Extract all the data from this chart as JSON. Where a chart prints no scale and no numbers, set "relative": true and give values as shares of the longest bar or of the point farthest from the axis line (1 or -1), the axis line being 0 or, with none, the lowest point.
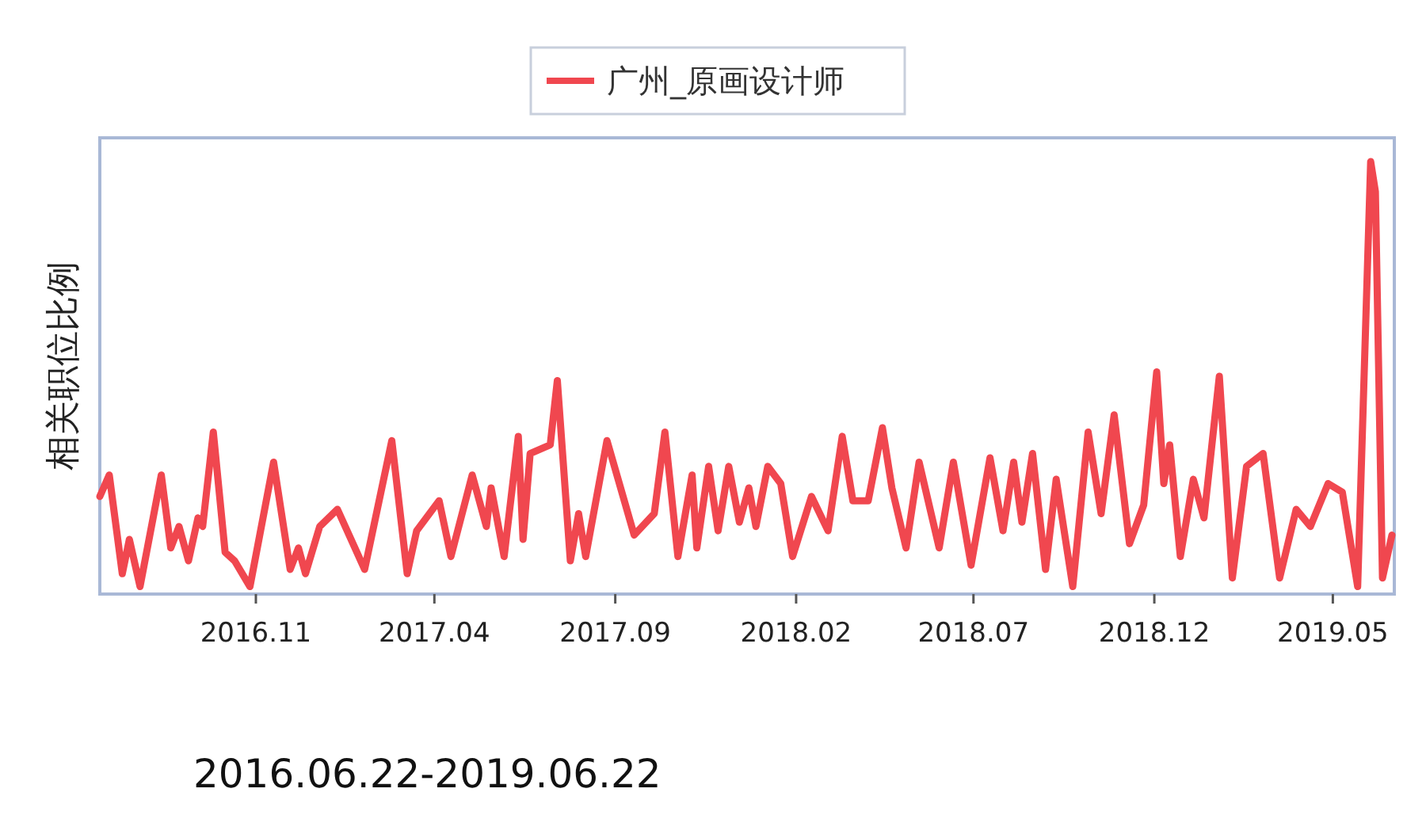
{
  "chart_data": {
    "type": "line",
    "ylabel": "相关职位比例",
    "legend": "top",
    "grid": false,
    "relative": true,
    "xlim": [
      "2016-06-22",
      "2019-06-22"
    ],
    "xticks": [
      {
        "value": "2016-11-01",
        "label": "2016.11"
      },
      {
        "value": "2017-04-01",
        "label": "2017.04"
      },
      {
        "value": "2017-09-01",
        "label": "2017.09"
      },
      {
        "value": "2018-02-01",
        "label": "2018.02"
      },
      {
        "value": "2018-07-01",
        "label": "2018.07"
      },
      {
        "value": "2018-12-01",
        "label": "2018.12"
      },
      {
        "value": "2019-05-01",
        "label": "2019.05"
      }
    ],
    "annotations": [
      "2016.06.22-2019.06.22"
    ],
    "x": [
      "2016-06-22",
      "2016-06-30",
      "2016-07-11",
      "2016-07-17",
      "2016-07-26",
      "2016-08-13",
      "2016-08-21",
      "2016-08-28",
      "2016-09-05",
      "2016-09-13",
      "2016-09-17",
      "2016-09-26",
      "2016-10-06",
      "2016-10-14",
      "2016-10-27",
      "2016-11-16",
      "2016-11-30",
      "2016-12-07",
      "2016-12-13",
      "2016-12-25",
      "2017-01-09",
      "2017-02-01",
      "2017-02-24",
      "2017-03-09",
      "2017-03-17",
      "2017-04-05",
      "2017-04-15",
      "2017-05-03",
      "2017-05-15",
      "2017-05-19",
      "2017-05-30",
      "2017-06-11",
      "2017-06-15",
      "2017-06-21",
      "2017-07-08",
      "2017-07-14",
      "2017-07-25",
      "2017-08-01",
      "2017-08-07",
      "2017-08-25",
      "2017-09-17",
      "2017-10-04",
      "2017-10-13",
      "2017-10-24",
      "2017-11-05",
      "2017-11-09",
      "2017-11-19",
      "2017-11-27",
      "2017-12-06",
      "2017-12-15",
      "2017-12-23",
      "2017-12-29",
      "2018-01-08",
      "2018-01-19",
      "2018-01-29",
      "2018-02-14",
      "2018-02-28",
      "2018-03-12",
      "2018-03-21",
      "2018-04-03",
      "2018-04-15",
      "2018-04-23",
      "2018-05-05",
      "2018-05-16",
      "2018-06-02",
      "2018-06-14",
      "2018-06-29",
      "2018-07-15",
      "2018-07-26",
      "2018-08-04",
      "2018-08-11",
      "2018-08-20",
      "2018-08-31",
      "2018-09-09",
      "2018-09-23",
      "2018-10-06",
      "2018-10-17",
      "2018-10-28",
      "2018-11-10",
      "2018-11-22",
      "2018-12-03",
      "2018-12-09",
      "2018-12-14",
      "2018-12-23",
      "2019-01-03",
      "2019-01-12",
      "2019-01-25",
      "2019-02-05",
      "2019-02-17",
      "2019-03-03",
      "2019-03-17",
      "2019-03-31",
      "2019-04-12",
      "2019-04-27",
      "2019-05-09",
      "2019-05-22",
      "2019-06-02",
      "2019-06-06",
      "2019-06-12",
      "2019-06-20"
    ],
    "series": [
      {
        "name": "广州_原画设计师",
        "color": "#f0474f",
        "values": [
          0.22,
          0.27,
          0.04,
          0.12,
          0.01,
          0.27,
          0.1,
          0.15,
          0.07,
          0.17,
          0.15,
          0.37,
          0.09,
          0.07,
          0.01,
          0.3,
          0.05,
          0.1,
          0.04,
          0.15,
          0.19,
          0.05,
          0.35,
          0.04,
          0.14,
          0.21,
          0.08,
          0.27,
          0.15,
          0.24,
          0.08,
          0.36,
          0.12,
          0.32,
          0.34,
          0.49,
          0.07,
          0.18,
          0.08,
          0.35,
          0.13,
          0.18,
          0.37,
          0.08,
          0.27,
          0.1,
          0.29,
          0.14,
          0.29,
          0.16,
          0.24,
          0.15,
          0.29,
          0.25,
          0.08,
          0.22,
          0.14,
          0.36,
          0.21,
          0.21,
          0.38,
          0.24,
          0.1,
          0.3,
          0.1,
          0.3,
          0.06,
          0.31,
          0.14,
          0.3,
          0.16,
          0.32,
          0.05,
          0.26,
          0.01,
          0.37,
          0.18,
          0.41,
          0.11,
          0.2,
          0.51,
          0.25,
          0.34,
          0.08,
          0.26,
          0.17,
          0.5,
          0.03,
          0.29,
          0.32,
          0.03,
          0.19,
          0.15,
          0.25,
          0.23,
          0.01,
          1,
          0.93,
          0.03,
          0.13
        ]
      }
    ]
  }
}
